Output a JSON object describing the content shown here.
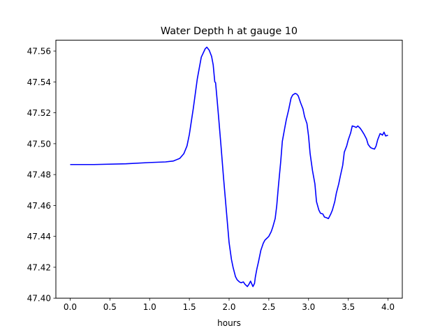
{
  "chart_data": {
    "type": "line",
    "title": "Water Depth h at gauge 10",
    "xlabel": "hours",
    "ylabel": "",
    "xlim": [
      -0.18,
      4.18
    ],
    "ylim": [
      47.4,
      47.567
    ],
    "xticks": [
      0.0,
      0.5,
      1.0,
      1.5,
      2.0,
      2.5,
      3.0,
      3.5,
      4.0
    ],
    "xtick_labels": [
      "0.0",
      "0.5",
      "1.0",
      "1.5",
      "2.0",
      "2.5",
      "3.0",
      "3.5",
      "4.0"
    ],
    "yticks": [
      47.4,
      47.42,
      47.44,
      47.46,
      47.48,
      47.5,
      47.52,
      47.54,
      47.56
    ],
    "ytick_labels": [
      "47.40",
      "47.42",
      "47.44",
      "47.46",
      "47.48",
      "47.50",
      "47.52",
      "47.54",
      "47.56"
    ],
    "grid": false,
    "series": [
      {
        "color": "#0000ff",
        "x": [
          0.0,
          0.3,
          0.7,
          1.0,
          1.2,
          1.3,
          1.38,
          1.43,
          1.47,
          1.5,
          1.55,
          1.6,
          1.65,
          1.7,
          1.72,
          1.75,
          1.78,
          1.8,
          1.82,
          1.83,
          1.85,
          1.87,
          1.9,
          1.93,
          1.95,
          1.98,
          2.0,
          2.03,
          2.05,
          2.08,
          2.1,
          2.13,
          2.15,
          2.18,
          2.2,
          2.23,
          2.25,
          2.27,
          2.3,
          2.32,
          2.33,
          2.35,
          2.37,
          2.4,
          2.43,
          2.45,
          2.47,
          2.5,
          2.53,
          2.55,
          2.58,
          2.6,
          2.62,
          2.65,
          2.67,
          2.7,
          2.72,
          2.75,
          2.78,
          2.8,
          2.83,
          2.85,
          2.87,
          2.9,
          2.93,
          2.95,
          2.98,
          3.0,
          3.02,
          3.05,
          3.08,
          3.1,
          3.13,
          3.15,
          3.18,
          3.2,
          3.23,
          3.25,
          3.28,
          3.3,
          3.33,
          3.35,
          3.38,
          3.4,
          3.43,
          3.45,
          3.48,
          3.5,
          3.53,
          3.55,
          3.58,
          3.6,
          3.62,
          3.65,
          3.67,
          3.7,
          3.73,
          3.75,
          3.78,
          3.8,
          3.83,
          3.85,
          3.87,
          3.9,
          3.92,
          3.93,
          3.95,
          3.97,
          4.0
        ],
        "y": [
          47.4865,
          47.4865,
          47.487,
          47.4878,
          47.4882,
          47.4888,
          47.4905,
          47.4935,
          47.4985,
          47.506,
          47.523,
          47.542,
          47.556,
          47.5615,
          47.5625,
          47.5605,
          47.5565,
          47.551,
          47.54,
          47.5395,
          47.528,
          47.516,
          47.4975,
          47.478,
          47.466,
          47.448,
          47.436,
          47.425,
          47.42,
          47.414,
          47.412,
          47.4105,
          47.41,
          47.4105,
          47.409,
          47.4075,
          47.409,
          47.411,
          47.4075,
          47.4095,
          47.4135,
          47.419,
          47.4235,
          47.431,
          47.4355,
          47.4375,
          47.4385,
          47.44,
          47.443,
          47.446,
          47.4515,
          47.46,
          47.472,
          47.4885,
          47.5015,
          47.51,
          47.5155,
          47.522,
          47.5295,
          47.5315,
          47.5325,
          47.5322,
          47.531,
          47.5265,
          47.5225,
          47.5175,
          47.513,
          47.505,
          47.4935,
          47.4825,
          47.474,
          47.4625,
          47.457,
          47.455,
          47.4545,
          47.4525,
          47.452,
          47.4515,
          47.4545,
          47.457,
          47.4625,
          47.468,
          47.474,
          47.479,
          47.486,
          47.4945,
          47.4985,
          47.5025,
          47.507,
          47.5115,
          47.511,
          47.5105,
          47.5115,
          47.51,
          47.5085,
          47.506,
          47.503,
          47.4995,
          47.4975,
          47.497,
          47.4965,
          47.4985,
          47.5025,
          47.5065,
          47.506,
          47.5055,
          47.5075,
          47.505,
          47.5055
        ]
      }
    ]
  }
}
